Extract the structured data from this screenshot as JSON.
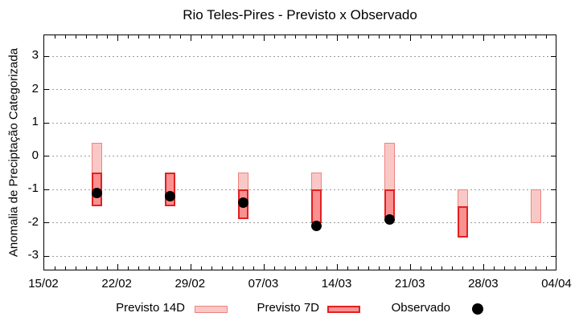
{
  "chart_data": {
    "type": "range-bar",
    "title": "Rio Teles-Pires - Previsto x Observado",
    "ylabel": "Anomalia de Preciptação Categorizada",
    "x_axis": {
      "tick_labels": [
        "15/02",
        "22/02",
        "29/02",
        "07/03",
        "14/03",
        "21/03",
        "28/03",
        "04/04"
      ],
      "days_span": 49,
      "minor_tick_every_days": 1,
      "major_tick_every_days": 7
    },
    "y_axis": {
      "ticks": [
        3,
        2,
        1,
        0,
        -1,
        -2,
        -3
      ],
      "ylim": [
        -3.45,
        3.6
      ],
      "grid": "dotted"
    },
    "colors": {
      "previsto_14d_fill": "#f9c8c6",
      "previsto_14d_border": "#ee837d",
      "previsto_7d_fill": "#f89190",
      "previsto_7d_border": "#e32020",
      "observado": "#000000",
      "gridline": "#9a9a9a"
    },
    "points": [
      {
        "date": "20/02",
        "day": 5,
        "previsto_14d": [
          0.4,
          -1.5
        ],
        "previsto_7d": [
          -0.5,
          -1.5
        ],
        "observado": -1.1
      },
      {
        "date": "27/02",
        "day": 12,
        "previsto_14d": null,
        "previsto_7d": [
          -0.5,
          -1.5
        ],
        "observado": -1.2
      },
      {
        "date": "05/03",
        "day": 19,
        "previsto_14d": [
          -0.5,
          -1.9
        ],
        "previsto_7d": [
          -1.0,
          -1.9
        ],
        "observado": -1.4
      },
      {
        "date": "12/03",
        "day": 26,
        "previsto_14d": [
          -0.5,
          -2.0
        ],
        "previsto_7d": [
          -1.0,
          -2.0
        ],
        "observado": -2.1
      },
      {
        "date": "19/03",
        "day": 33,
        "previsto_14d": [
          0.4,
          -1.85
        ],
        "previsto_7d": [
          -1.0,
          -1.85
        ],
        "observado": -1.9
      },
      {
        "date": "26/03",
        "day": 40,
        "previsto_14d": [
          -1.0,
          -2.45
        ],
        "previsto_7d": [
          -1.5,
          -2.45
        ],
        "observado": null
      },
      {
        "date": "02/04",
        "day": 47,
        "previsto_14d": [
          -1.0,
          -2.0
        ],
        "previsto_7d": null,
        "observado": null
      }
    ],
    "legend": [
      {
        "label": "Previsto 14D",
        "type": "box-14d"
      },
      {
        "label": "Previsto 7D",
        "type": "box-7d"
      },
      {
        "label": "Observado",
        "type": "dot"
      }
    ]
  }
}
